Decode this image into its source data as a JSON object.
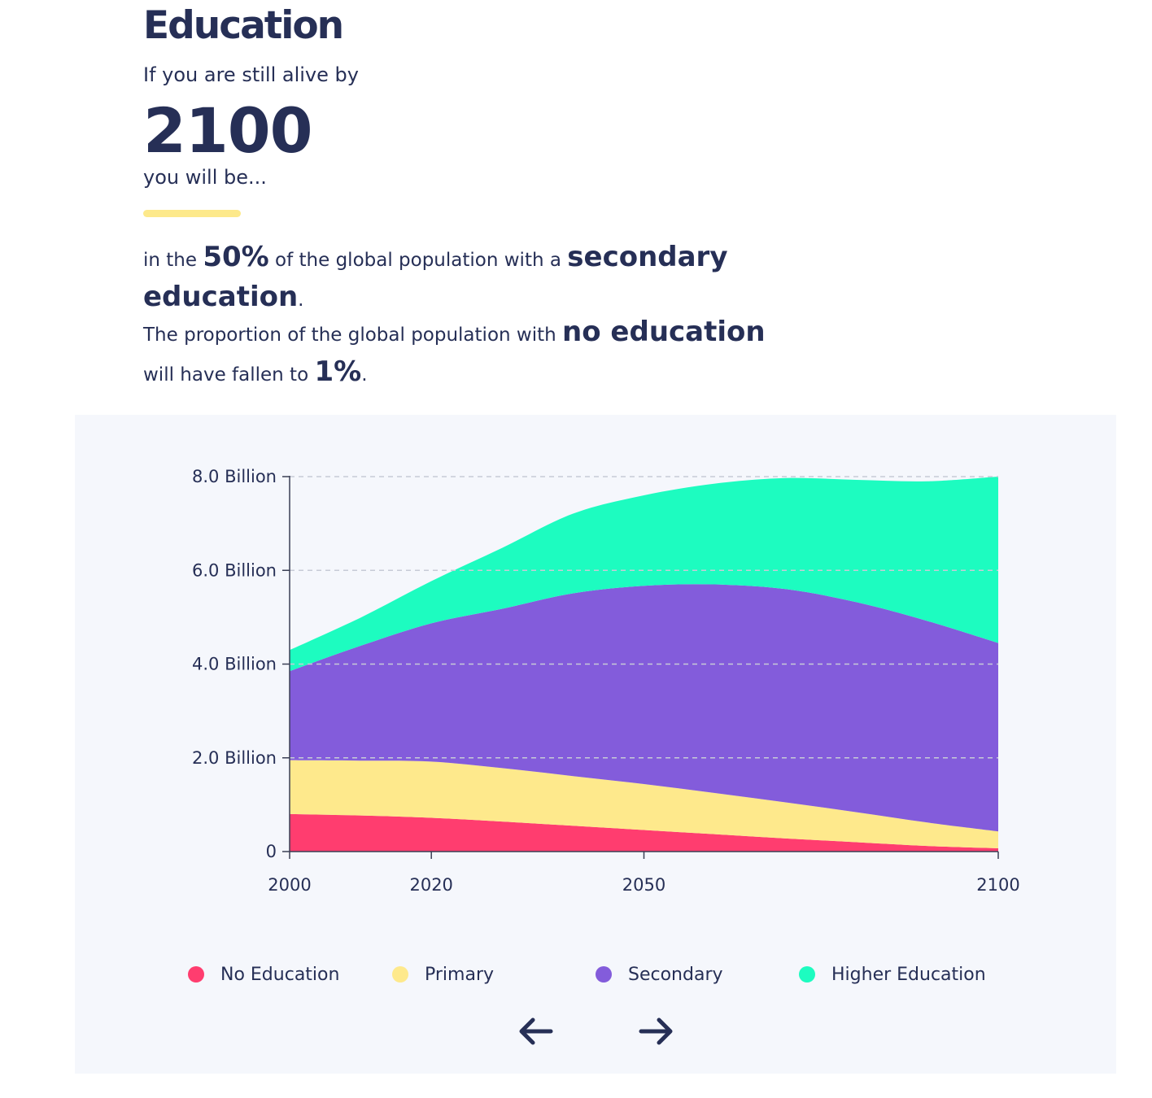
{
  "header": {
    "title": "Education",
    "intro": "If you are still alive by",
    "year": "2100",
    "outro": "you will be..."
  },
  "statement": {
    "p1_a": "in the ",
    "p1_b": "50%",
    "p1_c": " of the global population with a ",
    "p1_d": "secondary education",
    "p1_e": ".",
    "p2_a": "The proportion of the global population with ",
    "p2_b": "no education",
    "p2_c": " will have fallen to ",
    "p2_d": "1%",
    "p2_e": "."
  },
  "colors": {
    "text": "#262f56",
    "accent_underline": "#fde98b",
    "no_education": "#ff3d6f",
    "primary": "#fee98c",
    "secondary": "#835cdb",
    "higher": "#1dfcc0",
    "panel_bg": "#f5f7fc"
  },
  "chart_data": {
    "type": "area",
    "stacked": true,
    "x": [
      2000,
      2010,
      2020,
      2030,
      2040,
      2050,
      2060,
      2070,
      2080,
      2090,
      2100
    ],
    "series": [
      {
        "name": "No Education",
        "color": "#ff3d6f",
        "values": [
          0.8,
          0.77,
          0.72,
          0.64,
          0.55,
          0.46,
          0.37,
          0.28,
          0.2,
          0.12,
          0.07
        ]
      },
      {
        "name": "Primary",
        "color": "#fee98c",
        "values": [
          1.15,
          1.17,
          1.2,
          1.14,
          1.06,
          0.98,
          0.88,
          0.77,
          0.64,
          0.5,
          0.36
        ]
      },
      {
        "name": "Secondary",
        "color": "#835cdb",
        "values": [
          1.9,
          2.45,
          2.95,
          3.4,
          3.9,
          4.23,
          4.45,
          4.55,
          4.48,
          4.3,
          4.02
        ]
      },
      {
        "name": "Higher Education",
        "color": "#1dfcc0",
        "values": [
          0.45,
          0.6,
          0.9,
          1.3,
          1.7,
          1.93,
          2.15,
          2.37,
          2.61,
          2.98,
          3.55
        ]
      }
    ],
    "xticks": [
      "2000",
      "2020",
      "2050",
      "2100"
    ],
    "xtick_values": [
      2000,
      2020,
      2050,
      2100
    ],
    "yticks": [
      "0",
      "2.0 Billion",
      "4.0 Billion",
      "6.0 Billion",
      "8.0 Billion"
    ],
    "ytick_values": [
      0,
      2,
      4,
      6,
      8
    ],
    "ylim": [
      0,
      8
    ],
    "xlim": [
      2000,
      2100
    ],
    "grid": "horizontal-dashed",
    "legend_position": "bottom"
  },
  "legend": [
    {
      "label": "No Education",
      "color": "#ff3d6f"
    },
    {
      "label": "Primary",
      "color": "#fee98c"
    },
    {
      "label": "Secondary",
      "color": "#835cdb"
    },
    {
      "label": "Higher Education",
      "color": "#1dfcc0"
    }
  ],
  "nav": {
    "prev_icon": "arrow-left-icon",
    "next_icon": "arrow-right-icon"
  }
}
